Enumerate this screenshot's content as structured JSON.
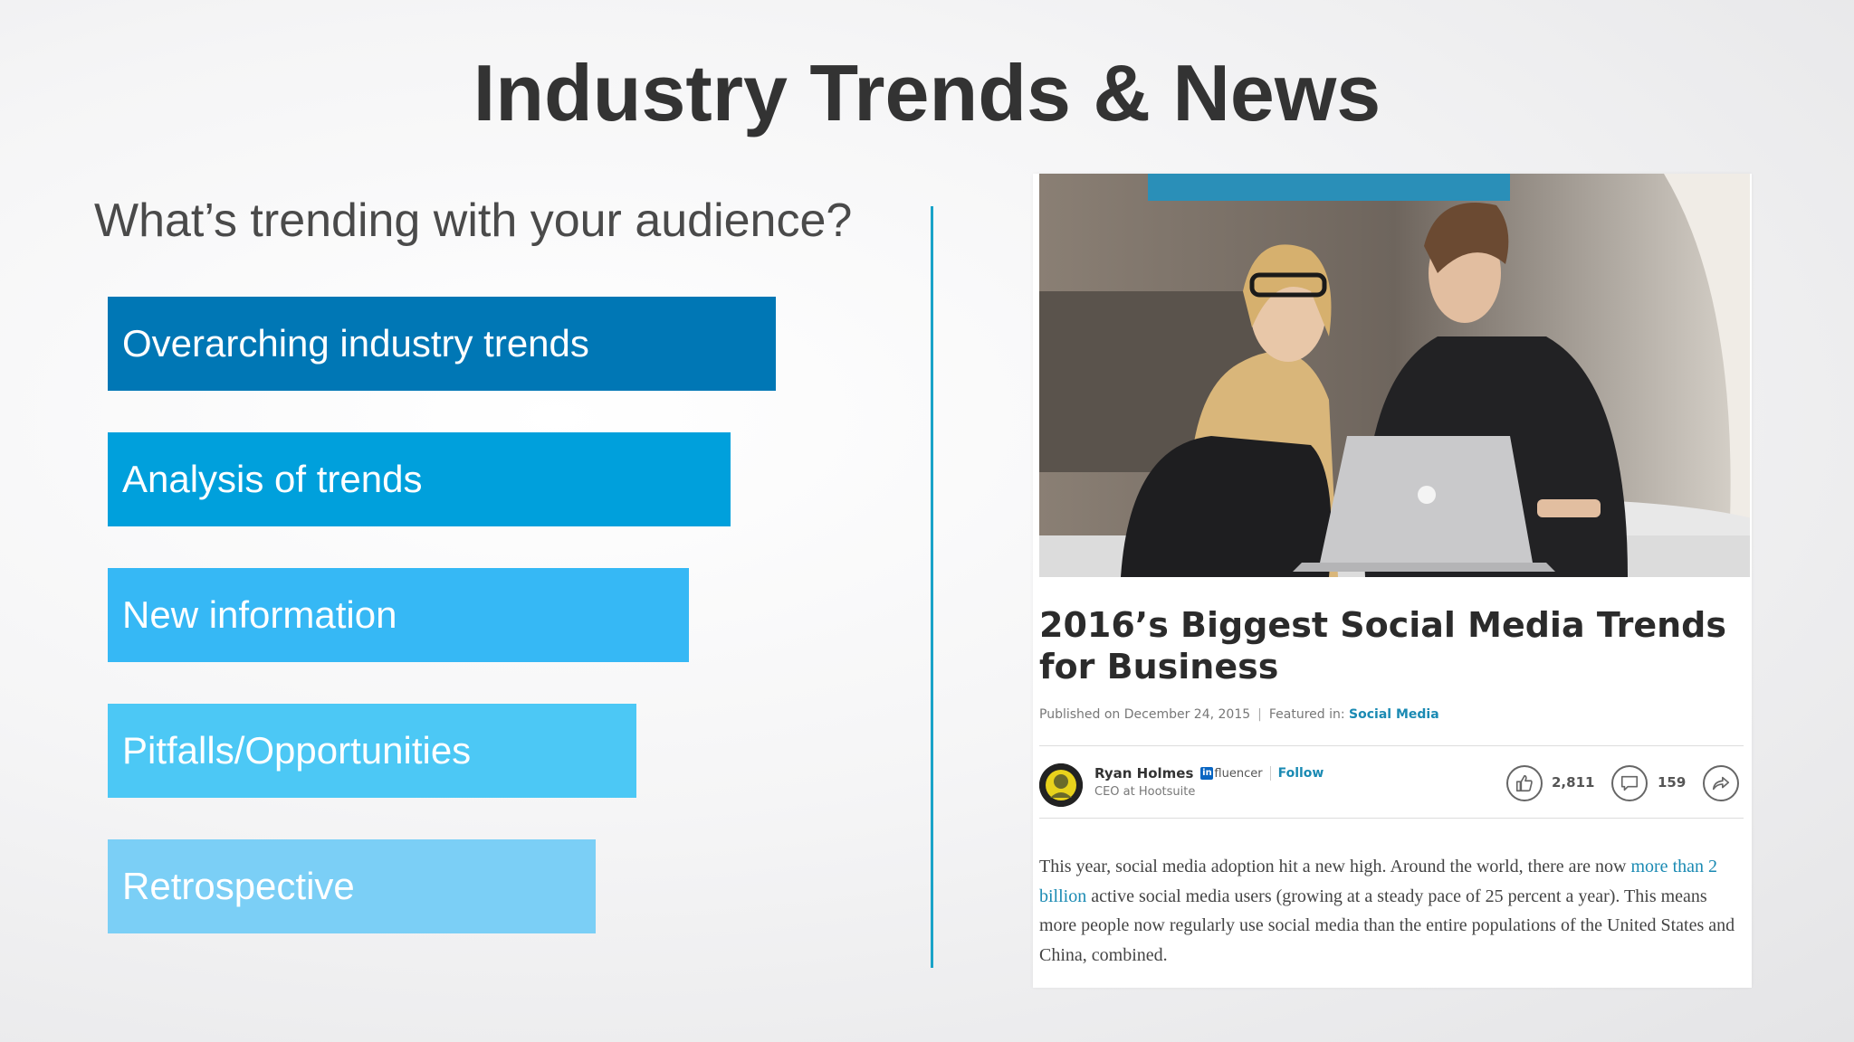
{
  "slide": {
    "title": "Industry Trends & News",
    "subtitle": "What’s trending with your audience?"
  },
  "bars": [
    {
      "label": "Overarching industry trends",
      "color": "#0077b5"
    },
    {
      "label": "Analysis of trends",
      "color": "#00a0dc"
    },
    {
      "label": "New information",
      "color": "#36b8f5"
    },
    {
      "label": "Pitfalls/Opportunities",
      "color": "#4cc8f5"
    },
    {
      "label": "Retrospective",
      "color": "#7bcff6"
    }
  ],
  "article": {
    "title": "2016’s Biggest Social Media Trends for Business",
    "published": "Published on December 24, 2015",
    "meta_separator": "|",
    "featured_label": "Featured in:",
    "featured_link": "Social Media",
    "author": {
      "name": "Ryan Holmes",
      "badge": "fluencer",
      "badge_logo": "in",
      "follow": "Follow",
      "role": "CEO at Hootsuite"
    },
    "likes": "2,811",
    "comments": "159",
    "body": {
      "part1": "This year, social media adoption hit a new high. Around the world, there are now ",
      "link": "more than 2 billion",
      "part2": " active social media users (growing at a steady pace of 25 percent a year). This means more people now regularly use social media than the entire populations of the United States and China, combined."
    },
    "icons": {
      "like": "thumbs-up-icon",
      "comment": "comment-icon",
      "share": "share-icon"
    }
  }
}
